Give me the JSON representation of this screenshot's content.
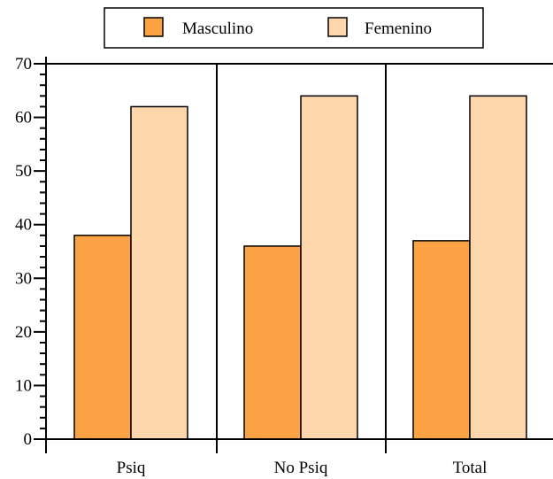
{
  "chart_data": {
    "type": "bar",
    "categories": [
      "Psiq",
      "No Psiq",
      "Total"
    ],
    "series": [
      {
        "name": "Masculino",
        "values": [
          38,
          36,
          37
        ]
      },
      {
        "name": "Femenino",
        "values": [
          62,
          64,
          64
        ]
      }
    ],
    "colors": {
      "Masculino": "#FBA344",
      "Femenino": "#FDD6AB",
      "stroke": "#000000"
    },
    "ylim": [
      0,
      70
    ],
    "yticks": [
      "0",
      "10",
      "20",
      "30",
      "40",
      "50",
      "60",
      "70"
    ],
    "yminor_ticks_per_major": 5,
    "xlabel": "",
    "ylabel": "",
    "grid": false,
    "legend_position": "top-center",
    "category_separators": true
  }
}
